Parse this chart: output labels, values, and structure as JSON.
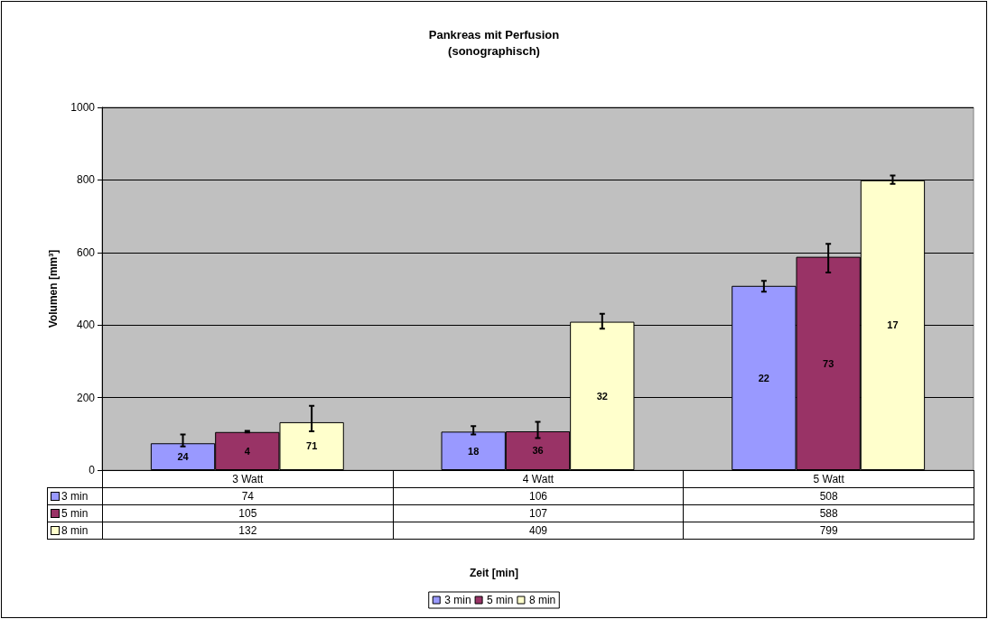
{
  "chart_data": {
    "type": "bar",
    "title": "Pankreas mit Perfusion",
    "subtitle": "(sonographisch)",
    "ylabel": "Volumen [mm³]",
    "annotations": [
      "Zeit [min]",
      "24",
      "18",
      "22",
      "4",
      "36",
      "73",
      "71",
      "32",
      "17"
    ],
    "categories": [
      "3 Watt",
      "4 Watt",
      "5 Watt"
    ],
    "series": [
      {
        "name": "3 min",
        "color": "#9999ff",
        "values": [
          74,
          106,
          508
        ],
        "errors": [
          [
            65,
            98
          ],
          [
            98,
            121
          ],
          [
            492,
            522
          ]
        ]
      },
      {
        "name": "5 min",
        "color": "#993366",
        "values": [
          105,
          107,
          588
        ],
        "errors": [
          [
            104,
            108
          ],
          [
            88,
            133
          ],
          [
            545,
            624
          ]
        ]
      },
      {
        "name": "8 min",
        "color": "#ffffcc",
        "values": [
          132,
          409,
          799
        ],
        "errors": [
          [
            107,
            177
          ],
          [
            390,
            431
          ],
          [
            789,
            812
          ]
        ]
      }
    ],
    "ylim": [
      0,
      1000
    ],
    "yticks": [
      0,
      200,
      400,
      600,
      800,
      1000
    ],
    "grid": "y",
    "legend": "bottom",
    "data_labels": true
  }
}
